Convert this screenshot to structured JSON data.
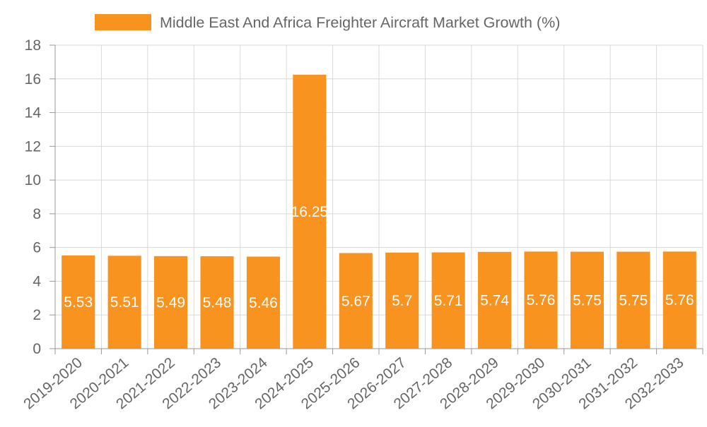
{
  "chart_data": {
    "type": "bar",
    "title": "",
    "legend": {
      "label": "Middle East And Africa Freighter Aircraft Market Growth (%)",
      "position": "top-center"
    },
    "categories": [
      "2019-2020",
      "2020-2021",
      "2021-2022",
      "2022-2023",
      "2023-2024",
      "2024-2025",
      "2025-2026",
      "2026-2027",
      "2027-2028",
      "2028-2029",
      "2029-2030",
      "2030-2031",
      "2031-2032",
      "2032-2033"
    ],
    "series": [
      {
        "name": "Middle East And Africa Freighter Aircraft Market Growth (%)",
        "values": [
          5.53,
          5.51,
          5.49,
          5.48,
          5.46,
          16.25,
          5.67,
          5.7,
          5.71,
          5.74,
          5.76,
          5.75,
          5.75,
          5.76
        ],
        "labels": [
          "5.53",
          "5.51",
          "5.49",
          "5.48",
          "5.46",
          "16.25",
          "5.67",
          "5.7",
          "5.71",
          "5.74",
          "5.76",
          "5.75",
          "5.75",
          "5.76"
        ]
      }
    ],
    "xlabel": "",
    "ylabel": "",
    "ylim": [
      0,
      18
    ],
    "yticks": [
      0,
      2,
      4,
      6,
      8,
      10,
      12,
      14,
      16,
      18
    ],
    "grid": true,
    "colors": {
      "bar": "#f7931e",
      "grid": "#d9d9d9",
      "axis": "#999999",
      "tick_text": "#666666",
      "data_label": "#ffffff",
      "legend_text": "#666666"
    }
  }
}
